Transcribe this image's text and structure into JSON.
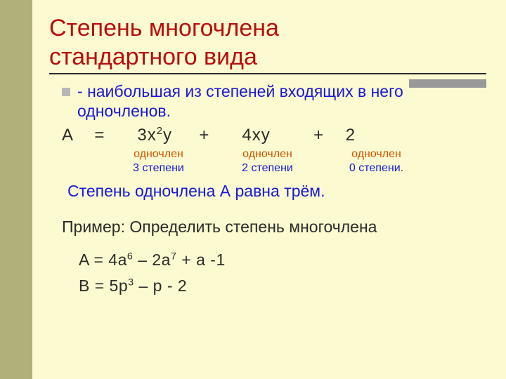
{
  "colors": {
    "background": "#fbfad0",
    "left_stripe": "#b2b07a",
    "title": "#ba0d0d",
    "underline": "#2c2c2c",
    "accent_bar": "#999999",
    "body_text": "#2b2b2b",
    "definition_text": "#1818d8",
    "annotation_orange": "#d35400",
    "annotation_blue": "#1818d8",
    "bullet": "#b8b8b8"
  },
  "typography": {
    "title_size_pt": 26,
    "body_size_pt": 17,
    "annotation_size_pt": 12,
    "equation_size_pt": 18
  },
  "title": {
    "line1": "Степень многочлена",
    "line2": "стандартного вида"
  },
  "definition": {
    "prefix": "- ",
    "text": "наибольшая из степеней входящих в него одночленов."
  },
  "equation": {
    "lhs": "A",
    "eq": "=",
    "terms": [
      {
        "coeff": "3",
        "var": "x",
        "exp": "2",
        "tail": "y"
      },
      {
        "op": "+",
        "coeff": "4",
        "var": "xy"
      },
      {
        "op": "+",
        "coeff": "2"
      }
    ],
    "label_top": "одночлен",
    "degrees": [
      "3 степени",
      "2 степени",
      "0 степени"
    ]
  },
  "degree_statement": "Степень одночлена А равна трём.",
  "example": {
    "lead": "Пример: Определить степень многочлена",
    "A": {
      "lhs": "A = 4a",
      "e1": "6",
      "mid": " – 2a",
      "e2": "7",
      "tail": " + a -1"
    },
    "B": {
      "lhs": "B = 5p",
      "e1": "3",
      "tail": " – p - 2"
    }
  }
}
